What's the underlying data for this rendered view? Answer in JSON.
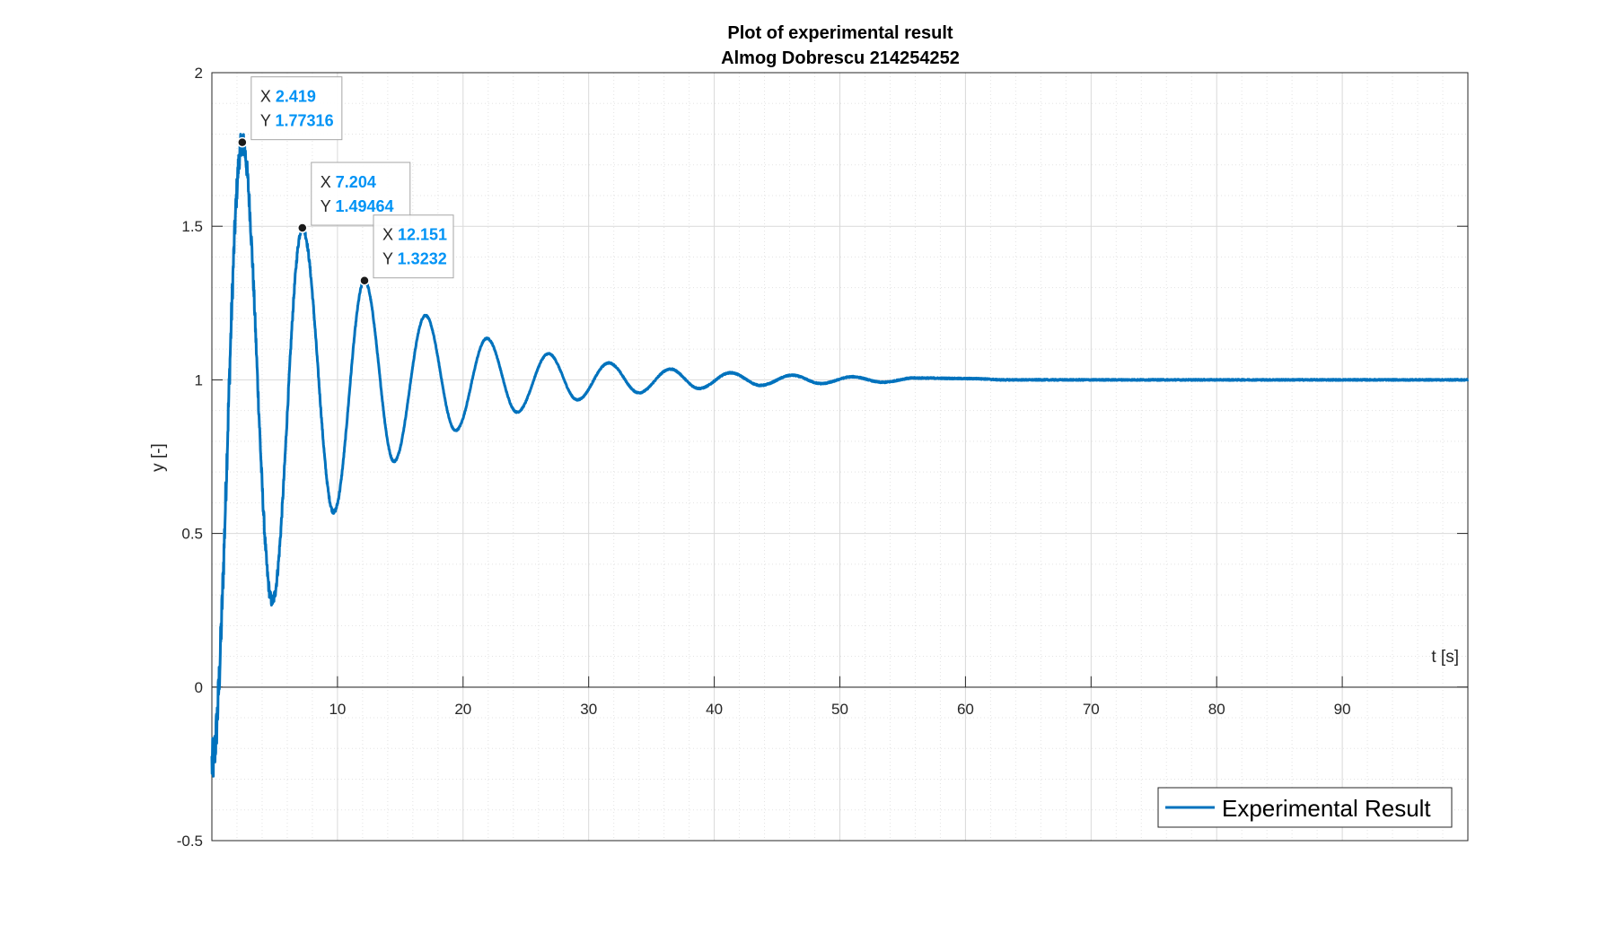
{
  "chart_data": {
    "type": "line",
    "title": [
      "Plot of experimental result",
      "Almog Dobrescu 214254252"
    ],
    "xlabel": "t [s]",
    "ylabel": "y [-]",
    "xlim": [
      0,
      100
    ],
    "ylim": [
      -0.5,
      2
    ],
    "x_ticks": [
      10,
      20,
      30,
      40,
      50,
      60,
      70,
      80,
      90
    ],
    "x_tick_labels": [
      "10",
      "20",
      "30",
      "40",
      "50",
      "60",
      "70",
      "80",
      "90"
    ],
    "y_ticks": [
      -0.5,
      0,
      0.5,
      1,
      1.5,
      2
    ],
    "y_tick_labels": [
      "-0.5",
      "0",
      "0.5",
      "1",
      "1.5",
      "2"
    ],
    "grid": true,
    "minor_grid": true,
    "x_axis_location": "origin",
    "legend_position": "bottom-right",
    "colors": {
      "series": "#0072bd",
      "datatip_value": "#0093f5"
    },
    "series": [
      {
        "name": "Experimental Result",
        "description_of_shape": "underdamped step response settling at 1, noisy early oscillations",
        "peaks": [
          {
            "x": 2.419,
            "y": 1.77316
          },
          {
            "x": 7.204,
            "y": 1.49464
          },
          {
            "x": 12.151,
            "y": 1.3232
          },
          {
            "x": 17.0,
            "y": 1.21
          },
          {
            "x": 21.9,
            "y": 1.135
          },
          {
            "x": 26.8,
            "y": 1.085
          },
          {
            "x": 31.6,
            "y": 1.055
          },
          {
            "x": 36.5,
            "y": 1.035
          },
          {
            "x": 41.3,
            "y": 1.023
          },
          {
            "x": 46.2,
            "y": 1.015
          },
          {
            "x": 51.0,
            "y": 1.01
          },
          {
            "x": 55.9,
            "y": 1.006
          },
          {
            "x": 60.7,
            "y": 1.004
          }
        ],
        "troughs": [
          {
            "x": 4.8,
            "y": 0.28
          },
          {
            "x": 9.7,
            "y": 0.57
          },
          {
            "x": 14.5,
            "y": 0.735
          },
          {
            "x": 19.4,
            "y": 0.835
          },
          {
            "x": 24.3,
            "y": 0.895
          },
          {
            "x": 29.1,
            "y": 0.935
          },
          {
            "x": 34.0,
            "y": 0.958
          },
          {
            "x": 38.8,
            "y": 0.972
          },
          {
            "x": 43.7,
            "y": 0.982
          },
          {
            "x": 48.5,
            "y": 0.988
          },
          {
            "x": 53.4,
            "y": 0.992
          }
        ],
        "final_value": 1.0
      }
    ],
    "datatips": [
      {
        "x_label": "X",
        "x": "2.419",
        "y_label": "Y",
        "y": "1.77316"
      },
      {
        "x_label": "X",
        "x": "7.204",
        "y_label": "Y",
        "y": "1.49464"
      },
      {
        "x_label": "X",
        "x": "12.151",
        "y_label": "Y",
        "y": "1.3232"
      }
    ]
  }
}
